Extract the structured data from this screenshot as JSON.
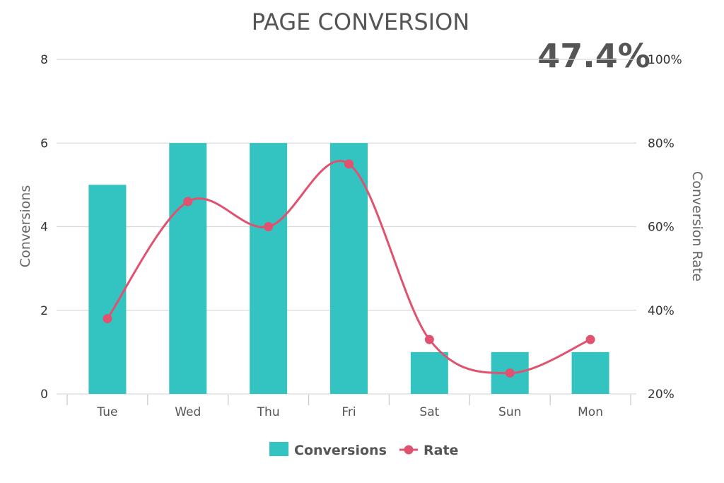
{
  "chart_data": {
    "type": "bar",
    "title": "PAGE CONVERSION",
    "kpi": "47.4%",
    "categories": [
      "Tue",
      "Wed",
      "Thu",
      "Fri",
      "Sat",
      "Sun",
      "Mon"
    ],
    "series": [
      {
        "name": "Conversions",
        "type": "bar",
        "axis": "left",
        "color": "#33c3c0",
        "values": [
          5,
          6,
          6,
          6,
          1,
          1,
          1
        ]
      },
      {
        "name": "Rate",
        "type": "line",
        "axis": "right",
        "color": "#e0526f",
        "smooth": true,
        "values": [
          38,
          66,
          60,
          75,
          33,
          25,
          33
        ]
      }
    ],
    "ylabel": "Conversions",
    "y2label": "Conversion Rate",
    "ylim": [
      0,
      8
    ],
    "y2lim": [
      20,
      100
    ],
    "yticks": [
      "0",
      "2",
      "4",
      "6",
      "8"
    ],
    "y2ticks": [
      "20%",
      "40%",
      "60%",
      "80%",
      "100%"
    ],
    "grid": true,
    "legend_position": "bottom"
  }
}
